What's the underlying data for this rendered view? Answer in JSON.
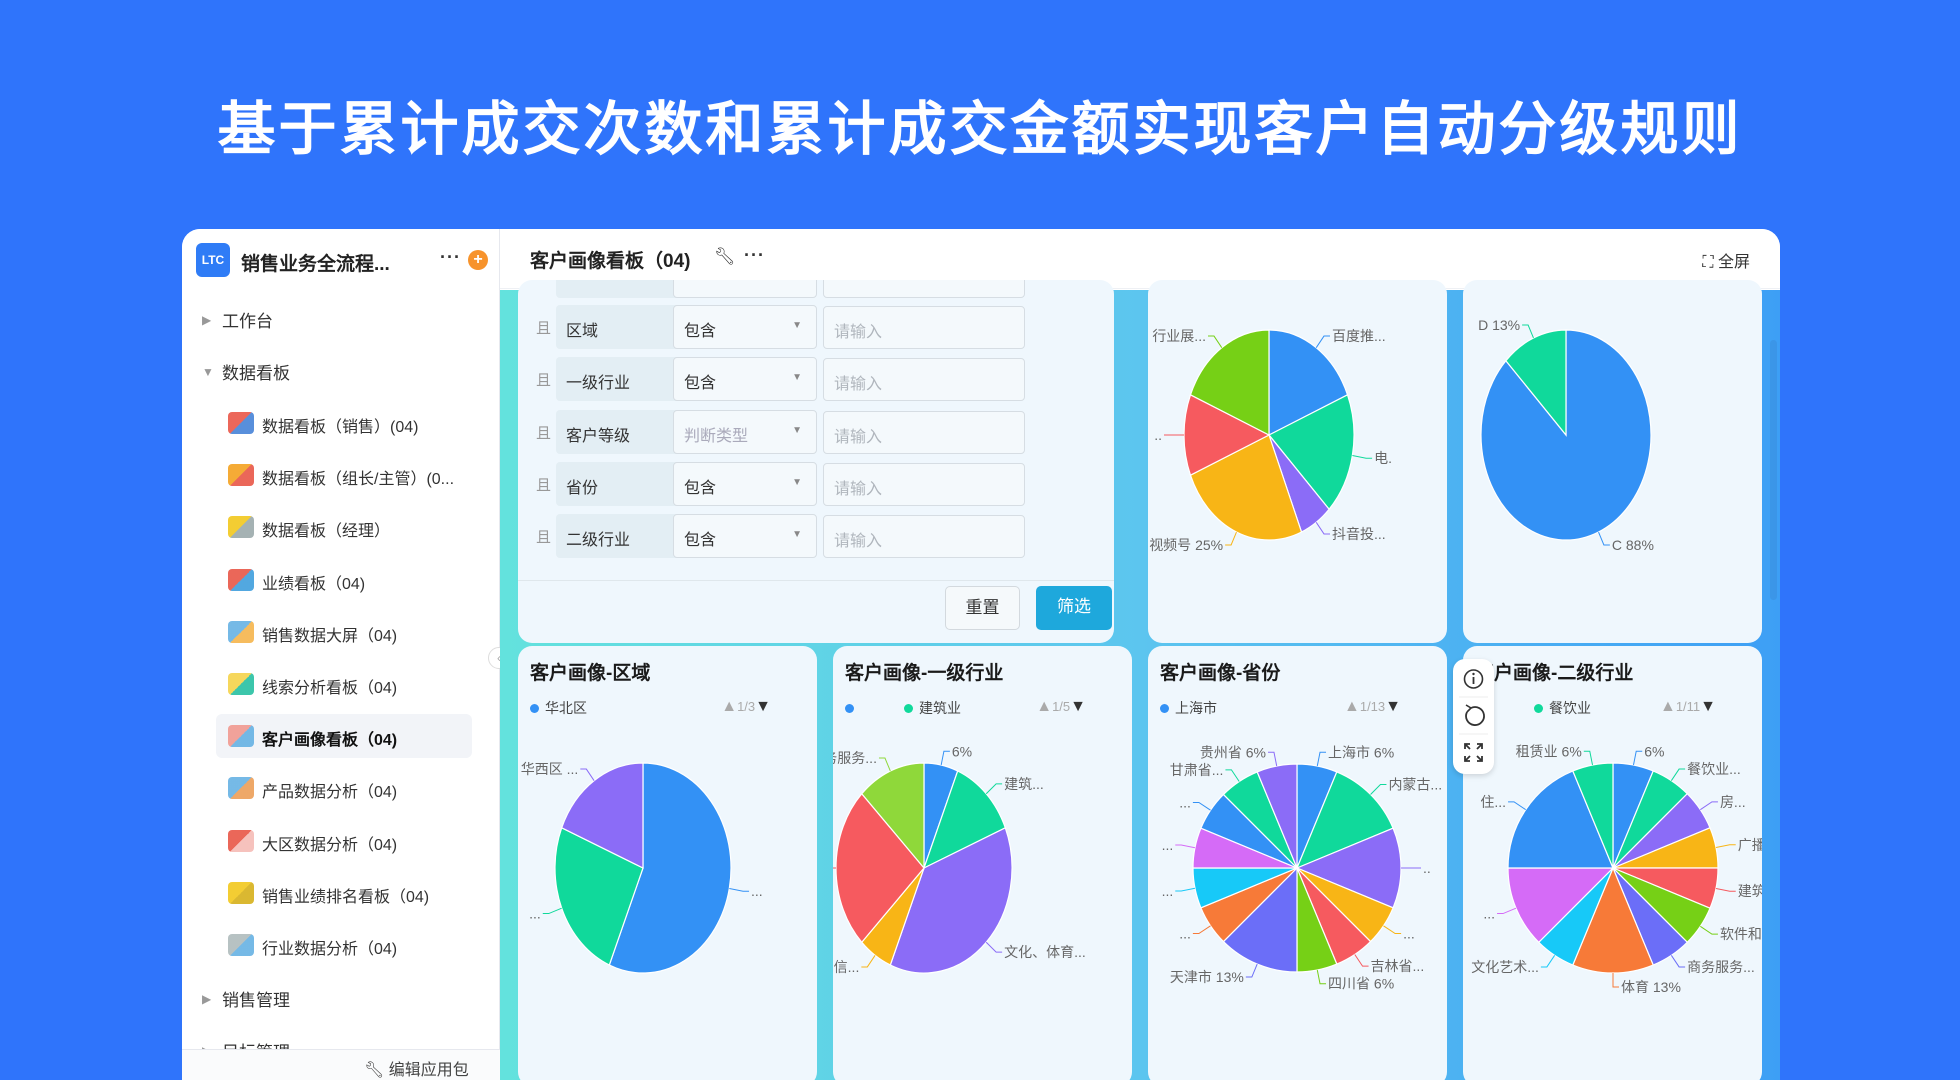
{
  "banner": "基于累计成交次数和累计成交金额实现客户自动分级规则",
  "sidebar": {
    "logo": "LTC",
    "app_name": "销售业务全流程...",
    "more": "···",
    "add": "+",
    "groups": {
      "workbench": "工作台",
      "dashboards": "数据看板",
      "sales": "销售管理",
      "targets": "目标管理"
    },
    "items": [
      {
        "label": "数据看板（销售）(04)",
        "icon": "sales-dashboard-icon"
      },
      {
        "label": "数据看板（组长/主管）(0...",
        "icon": "bar-growth-icon"
      },
      {
        "label": "数据看板（经理）",
        "icon": "manager-chart-icon"
      },
      {
        "label": "业绩看板（04)",
        "icon": "performance-pie-icon"
      },
      {
        "label": "销售数据大屏（04)",
        "icon": "big-screen-icon"
      },
      {
        "label": "线索分析看板（04)",
        "icon": "lead-board-icon"
      },
      {
        "label": "客户画像看板（04)",
        "icon": "customer-pie-icon",
        "active": true
      },
      {
        "label": "产品数据分析（04)",
        "icon": "product-data-icon"
      },
      {
        "label": "大区数据分析（04)",
        "icon": "region-clock-icon"
      },
      {
        "label": "销售业绩排名看板（04)",
        "icon": "trophy-icon"
      },
      {
        "label": "行业数据分析（04)",
        "icon": "industry-data-icon"
      }
    ],
    "footer": "编辑应用包"
  },
  "header": {
    "title": "客户画像看板（04)",
    "more": "···",
    "fullscreen": "全屏"
  },
  "filter": {
    "conj": "且",
    "rows": [
      {
        "field": "区域",
        "op": "包含",
        "placeholder": "请输入"
      },
      {
        "field": "一级行业",
        "op": "包含",
        "placeholder": "请输入"
      },
      {
        "field": "客户等级",
        "op": "判断类型",
        "placeholder": "请输入",
        "op_placeholder": true
      },
      {
        "field": "省份",
        "op": "包含",
        "placeholder": "请输入"
      },
      {
        "field": "二级行业",
        "op": "包含",
        "placeholder": "请输入"
      }
    ],
    "reset": "重置",
    "apply": "筛选"
  },
  "colors": {
    "accent": "#1ea8dc",
    "palette": [
      "#3391f5",
      "#10d99b",
      "#8b6cf7",
      "#f8b516",
      "#f65a5f",
      "#76d016",
      "#6b6ef8",
      "#f77a38",
      "#17c9f8",
      "#d56bf7"
    ]
  },
  "chart_data": [
    {
      "type": "pie",
      "title": "",
      "slices": [
        {
          "label": "百度推...",
          "value": 18.75,
          "color": "#3391f5"
        },
        {
          "label": "电.",
          "value": 18.75,
          "color": "#10d99b"
        },
        {
          "label": "抖音投...",
          "value": 6.25,
          "color": "#8b6cf7"
        },
        {
          "label": "视频号 25%",
          "value": 25,
          "color": "#f8b516"
        },
        {
          "label": "..",
          "value": 12.5,
          "color": "#f65a5f"
        },
        {
          "label": "行业展...",
          "value": 18.75,
          "color": "#76d016"
        }
      ]
    },
    {
      "type": "pie",
      "title": "",
      "slices": [
        {
          "label": "C 88%",
          "value": 87.5,
          "color": "#3391f5"
        },
        {
          "label": "D 13%",
          "value": 12.5,
          "color": "#10d99b"
        }
      ]
    },
    {
      "type": "pie",
      "title": "客户画像-区域",
      "legend": {
        "items": [
          {
            "label": "华北区",
            "color": "#3391f5"
          }
        ],
        "page": "1/3"
      },
      "slices": [
        {
          "label": "...",
          "value": 56.25,
          "color": "#3391f5"
        },
        {
          "label": "...",
          "value": 25,
          "color": "#10d99b"
        },
        {
          "label": "华西区 ...",
          "value": 18.75,
          "color": "#8b6cf7"
        }
      ]
    },
    {
      "type": "pie",
      "title": "客户画像-一级行业",
      "legend": {
        "items": [
          {
            "label": "",
            "color": "#3391f5"
          },
          {
            "label": "建筑业",
            "color": "#10d99b"
          }
        ],
        "page": "1/5"
      },
      "slices": [
        {
          "label": "6%",
          "value": 6.25,
          "color": "#3391f5"
        },
        {
          "label": "建筑...",
          "value": 12.5,
          "color": "#10d99b"
        },
        {
          "label": "文化、体育...",
          "value": 37.5,
          "color": "#8b6cf7"
        },
        {
          "label": "息传输、软件和信...",
          "value": 6.25,
          "color": "#f8b516"
        },
        {
          "label": "...",
          "value": 25,
          "color": "#f65a5f"
        },
        {
          "label": "租赁和商务服务...",
          "value": 12.5,
          "color": "#8fd83a"
        }
      ]
    },
    {
      "type": "pie",
      "title": "客户画像-省份",
      "legend": {
        "items": [
          {
            "label": "上海市",
            "color": "#3391f5"
          }
        ],
        "page": "1/13"
      },
      "slices": [
        {
          "label": "上海市 6%",
          "value": 6.25,
          "color": "#3391f5"
        },
        {
          "label": "内蒙古...",
          "value": 12.5,
          "color": "#10d99b"
        },
        {
          "label": "..",
          "value": 12.5,
          "color": "#8b6cf7"
        },
        {
          "label": "...",
          "value": 6.25,
          "color": "#f8b516"
        },
        {
          "label": "吉林省...",
          "value": 6.25,
          "color": "#f65a5f"
        },
        {
          "label": "四川省 6%",
          "value": 6.25,
          "color": "#76d016"
        },
        {
          "label": "天津市 13%",
          "value": 12.5,
          "color": "#6b6ef8"
        },
        {
          "label": "...",
          "value": 6.25,
          "color": "#f77a38"
        },
        {
          "label": "...",
          "value": 6.25,
          "color": "#17c9f8"
        },
        {
          "label": "...",
          "value": 6.25,
          "color": "#d56bf7"
        },
        {
          "label": "...",
          "value": 6.25,
          "color": "#3391f5"
        },
        {
          "label": "甘肃省...",
          "value": 6.25,
          "color": "#10d99b"
        },
        {
          "label": "贵州省 6%",
          "value": 6.25,
          "color": "#8b6cf7"
        }
      ]
    },
    {
      "type": "pie",
      "title": "客户画像-二级行业",
      "legend": {
        "items": [
          {
            "label": "",
            "color": "#3391f5"
          },
          {
            "label": "餐饮业",
            "color": "#10d99b"
          }
        ],
        "page": "1/11"
      },
      "slices": [
        {
          "label": "6%",
          "value": 6.25,
          "color": "#3391f5"
        },
        {
          "label": "餐饮业...",
          "value": 6.25,
          "color": "#10d99b"
        },
        {
          "label": "房...",
          "value": 6.25,
          "color": "#8b6cf7"
        },
        {
          "label": "广播、",
          "value": 6.25,
          "color": "#f8b516"
        },
        {
          "label": "建筑装",
          "value": 6.25,
          "color": "#f65a5f"
        },
        {
          "label": "软件和信",
          "value": 6.25,
          "color": "#76d016"
        },
        {
          "label": "商务服务...",
          "value": 6.25,
          "color": "#6b6ef8"
        },
        {
          "label": "体育 13%",
          "value": 12.5,
          "color": "#f77a38"
        },
        {
          "label": "文化艺术...",
          "value": 6.25,
          "color": "#17c9f8"
        },
        {
          "label": "...",
          "value": 12.5,
          "color": "#d56bf7"
        },
        {
          "label": "住...",
          "value": 18.75,
          "color": "#3391f5"
        },
        {
          "label": "租赁业 6%",
          "value": 6.25,
          "color": "#10d99b"
        }
      ]
    }
  ]
}
